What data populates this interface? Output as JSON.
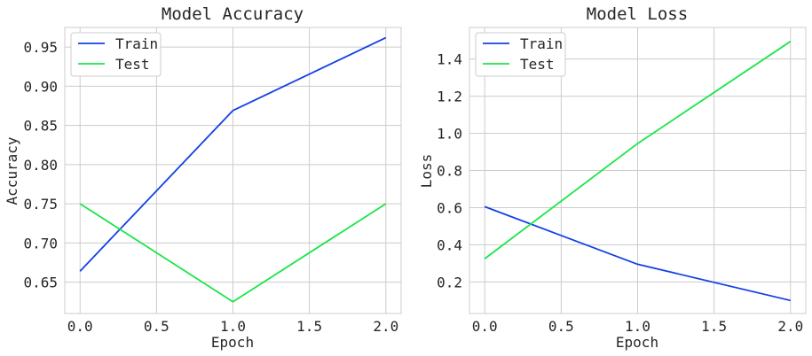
{
  "chart_data": [
    {
      "type": "line",
      "title": "Model Accuracy",
      "xlabel": "Epoch",
      "ylabel": "Accuracy",
      "x": [
        0.0,
        1.0,
        2.0
      ],
      "xlim": [
        -0.1,
        2.1
      ],
      "ylim": [
        0.61,
        0.975
      ],
      "xticks": [
        "0.0",
        "0.5",
        "1.0",
        "1.5",
        "2.0"
      ],
      "yticks": [
        "0.65",
        "0.70",
        "0.75",
        "0.80",
        "0.85",
        "0.90",
        "0.95"
      ],
      "grid": true,
      "legend_position": "upper left",
      "series": [
        {
          "name": "Train",
          "color": "#1340e6",
          "values": [
            0.664,
            0.869,
            0.962
          ]
        },
        {
          "name": "Test",
          "color": "#1ae64a",
          "values": [
            0.75,
            0.625,
            0.75
          ]
        }
      ]
    },
    {
      "type": "line",
      "title": "Model Loss",
      "xlabel": "Epoch",
      "ylabel": "Loss",
      "x": [
        0.0,
        1.0,
        2.0
      ],
      "xlim": [
        -0.1,
        2.1
      ],
      "ylim": [
        0.03,
        1.57
      ],
      "xticks": [
        "0.0",
        "0.5",
        "1.0",
        "1.5",
        "2.0"
      ],
      "yticks": [
        "0.2",
        "0.4",
        "0.6",
        "0.8",
        "1.0",
        "1.2",
        "1.4"
      ],
      "grid": true,
      "legend_position": "upper left",
      "series": [
        {
          "name": "Train",
          "color": "#1340e6",
          "values": [
            0.605,
            0.295,
            0.1
          ]
        },
        {
          "name": "Test",
          "color": "#1ae64a",
          "values": [
            0.325,
            0.945,
            1.495
          ]
        }
      ]
    }
  ]
}
